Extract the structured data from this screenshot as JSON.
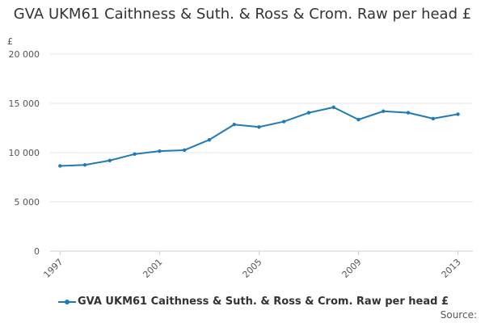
{
  "chart_data": {
    "type": "line",
    "title": "GVA UKM61 Caithness & Suth. & Ross & Crom. Raw per head £",
    "ylabel": "£",
    "xlabel": "",
    "ylim": [
      0,
      20000
    ],
    "y_ticks": [
      "0",
      "5 000",
      "10 000",
      "15 000",
      "20 000"
    ],
    "y_tick_values": [
      0,
      5000,
      10000,
      15000,
      20000
    ],
    "x_ticks": [
      "1997",
      "2001",
      "2005",
      "2009",
      "2013"
    ],
    "x_tick_values": [
      1997,
      2001,
      2005,
      2009,
      2013
    ],
    "x": [
      1997,
      1998,
      1999,
      2000,
      2001,
      2002,
      2003,
      2004,
      2005,
      2006,
      2007,
      2008,
      2009,
      2010,
      2011,
      2012,
      2013
    ],
    "series": [
      {
        "name": "GVA UKM61 Caithness & Suth. & Ross & Crom. Raw per head £",
        "color": "#1f7bb6",
        "values": [
          8650,
          8750,
          9200,
          9850,
          10150,
          10250,
          11300,
          12850,
          12600,
          13150,
          14050,
          14600,
          13350,
          14200,
          14050,
          13450,
          13900
        ]
      }
    ],
    "grid": true,
    "legend_position": "bottom-left"
  },
  "source_label": "Source:"
}
